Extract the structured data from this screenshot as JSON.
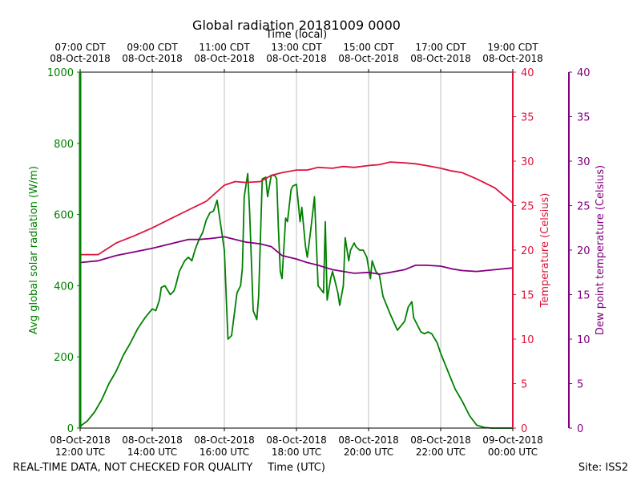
{
  "chart_data": {
    "type": "line",
    "title": "Global radiation 20181009 0000",
    "top_axis_label": "Time (local)",
    "xlabel": "Time (UTC)",
    "ylabel_left": "Avg global solar radiation (W/m)",
    "ylabel_right_temp": "Temperature (Celsius)",
    "ylabel_right_dew": "Dew point temperature (Celsius)",
    "footer_left": "REAL-TIME DATA, NOT CHECKED FOR QUALITY",
    "footer_right": "Site: ISS2",
    "x_range_hours": [
      12,
      24
    ],
    "ylim_radiation": [
      0,
      1000
    ],
    "ylim_temperature": [
      0,
      40
    ],
    "ylim_dewpoint": [
      0,
      40
    ],
    "grid": "vertical",
    "x_ticks_bottom": [
      {
        "hour": 12,
        "line1": "08-Oct-2018",
        "line2": "12:00 UTC"
      },
      {
        "hour": 14,
        "line1": "08-Oct-2018",
        "line2": "14:00 UTC"
      },
      {
        "hour": 16,
        "line1": "08-Oct-2018",
        "line2": "16:00 UTC"
      },
      {
        "hour": 18,
        "line1": "08-Oct-2018",
        "line2": "18:00 UTC"
      },
      {
        "hour": 20,
        "line1": "08-Oct-2018",
        "line2": "20:00 UTC"
      },
      {
        "hour": 22,
        "line1": "08-Oct-2018",
        "line2": "22:00 UTC"
      },
      {
        "hour": 24,
        "line1": "09-Oct-2018",
        "line2": "00:00 UTC"
      }
    ],
    "x_ticks_top": [
      {
        "hour": 12,
        "line1": "07:00 CDT",
        "line2": "08-Oct-2018"
      },
      {
        "hour": 14,
        "line1": "09:00 CDT",
        "line2": "08-Oct-2018"
      },
      {
        "hour": 16,
        "line1": "11:00 CDT",
        "line2": "08-Oct-2018"
      },
      {
        "hour": 18,
        "line1": "13:00 CDT",
        "line2": "08-Oct-2018"
      },
      {
        "hour": 20,
        "line1": "15:00 CDT",
        "line2": "08-Oct-2018"
      },
      {
        "hour": 22,
        "line1": "17:00 CDT",
        "line2": "08-Oct-2018"
      },
      {
        "hour": 24,
        "line1": "19:00 CDT",
        "line2": "08-Oct-2018"
      }
    ],
    "y_ticks_radiation": [
      0,
      200,
      400,
      600,
      800,
      1000
    ],
    "y_ticks_temperature": [
      0,
      5,
      10,
      15,
      20,
      25,
      30,
      35,
      40
    ],
    "y_ticks_dewpoint": [
      0,
      5,
      10,
      15,
      20,
      25,
      30,
      35,
      40
    ],
    "series": [
      {
        "name": "Avg global solar radiation",
        "axis": "radiation",
        "color": "#008000",
        "x": [
          12.0,
          12.2,
          12.4,
          12.6,
          12.8,
          13.0,
          13.2,
          13.4,
          13.6,
          13.8,
          14.0,
          14.1,
          14.2,
          14.25,
          14.35,
          14.5,
          14.6,
          14.65,
          14.75,
          14.9,
          15.0,
          15.1,
          15.2,
          15.3,
          15.4,
          15.5,
          15.6,
          15.7,
          15.8,
          16.0,
          16.1,
          16.2,
          16.35,
          16.45,
          16.5,
          16.55,
          16.65,
          16.7,
          16.8,
          16.9,
          16.95,
          17.05,
          17.15,
          17.2,
          17.3,
          17.4,
          17.45,
          17.5,
          17.55,
          17.6,
          17.7,
          17.75,
          17.85,
          17.9,
          18.0,
          18.1,
          18.15,
          18.25,
          18.3,
          18.4,
          18.5,
          18.6,
          18.75,
          18.8,
          18.85,
          18.95,
          19.0,
          19.05,
          19.15,
          19.2,
          19.3,
          19.35,
          19.45,
          19.5,
          19.6,
          19.65,
          19.75,
          19.85,
          19.95,
          20.05,
          20.1,
          20.2,
          20.3,
          20.4,
          20.6,
          20.8,
          21.0,
          21.1,
          21.2,
          21.25,
          21.35,
          21.45,
          21.55,
          21.65,
          21.75,
          21.9,
          22.0,
          22.2,
          22.4,
          22.6,
          22.8,
          23.0,
          23.2,
          23.4,
          23.6,
          23.8,
          24.0
        ],
        "values": [
          5,
          20,
          45,
          80,
          125,
          160,
          205,
          240,
          280,
          310,
          335,
          330,
          360,
          395,
          400,
          375,
          385,
          400,
          440,
          470,
          480,
          470,
          505,
          530,
          550,
          585,
          605,
          610,
          640,
          500,
          250,
          260,
          380,
          400,
          450,
          650,
          715,
          610,
          330,
          305,
          370,
          700,
          705,
          650,
          710,
          710,
          700,
          560,
          440,
          420,
          590,
          580,
          670,
          680,
          685,
          580,
          620,
          510,
          480,
          560,
          650,
          400,
          380,
          580,
          360,
          420,
          440,
          420,
          380,
          345,
          400,
          535,
          470,
          500,
          520,
          510,
          500,
          500,
          480,
          420,
          470,
          440,
          430,
          370,
          320,
          275,
          300,
          340,
          355,
          310,
          290,
          270,
          265,
          270,
          265,
          240,
          210,
          160,
          110,
          75,
          35,
          8,
          2,
          0,
          0,
          0,
          0
        ]
      },
      {
        "name": "Temperature",
        "axis": "temperature",
        "color": "#dc143c",
        "x": [
          12.0,
          12.5,
          13.0,
          13.5,
          14.0,
          14.5,
          15.0,
          15.5,
          16.0,
          16.3,
          16.6,
          17.0,
          17.3,
          17.6,
          18.0,
          18.3,
          18.6,
          19.0,
          19.3,
          19.6,
          20.0,
          20.3,
          20.6,
          21.0,
          21.3,
          21.6,
          22.0,
          22.3,
          22.6,
          23.0,
          23.5,
          24.0
        ],
        "values": [
          19.5,
          19.5,
          20.8,
          21.6,
          22.5,
          23.5,
          24.5,
          25.5,
          27.3,
          27.7,
          27.6,
          27.7,
          28.4,
          28.7,
          29.0,
          29.0,
          29.3,
          29.2,
          29.4,
          29.3,
          29.5,
          29.6,
          29.9,
          29.8,
          29.7,
          29.5,
          29.2,
          28.9,
          28.7,
          28.0,
          27.0,
          25.3
        ]
      },
      {
        "name": "Dew point temperature",
        "axis": "dewpoint",
        "color": "#800080",
        "x": [
          12.0,
          12.5,
          13.0,
          13.5,
          14.0,
          14.5,
          15.0,
          15.3,
          15.6,
          16.0,
          16.3,
          16.6,
          17.0,
          17.3,
          17.6,
          18.0,
          18.3,
          18.6,
          19.0,
          19.3,
          19.6,
          20.0,
          20.3,
          20.6,
          21.0,
          21.3,
          21.6,
          22.0,
          22.3,
          22.6,
          23.0,
          23.5,
          24.0
        ],
        "values": [
          18.6,
          18.8,
          19.4,
          19.8,
          20.2,
          20.7,
          21.2,
          21.2,
          21.3,
          21.5,
          21.2,
          20.9,
          20.7,
          20.4,
          19.4,
          19.0,
          18.6,
          18.3,
          17.8,
          17.6,
          17.4,
          17.5,
          17.3,
          17.5,
          17.8,
          18.3,
          18.3,
          18.2,
          17.9,
          17.7,
          17.6,
          17.8,
          18.0
        ]
      }
    ]
  }
}
